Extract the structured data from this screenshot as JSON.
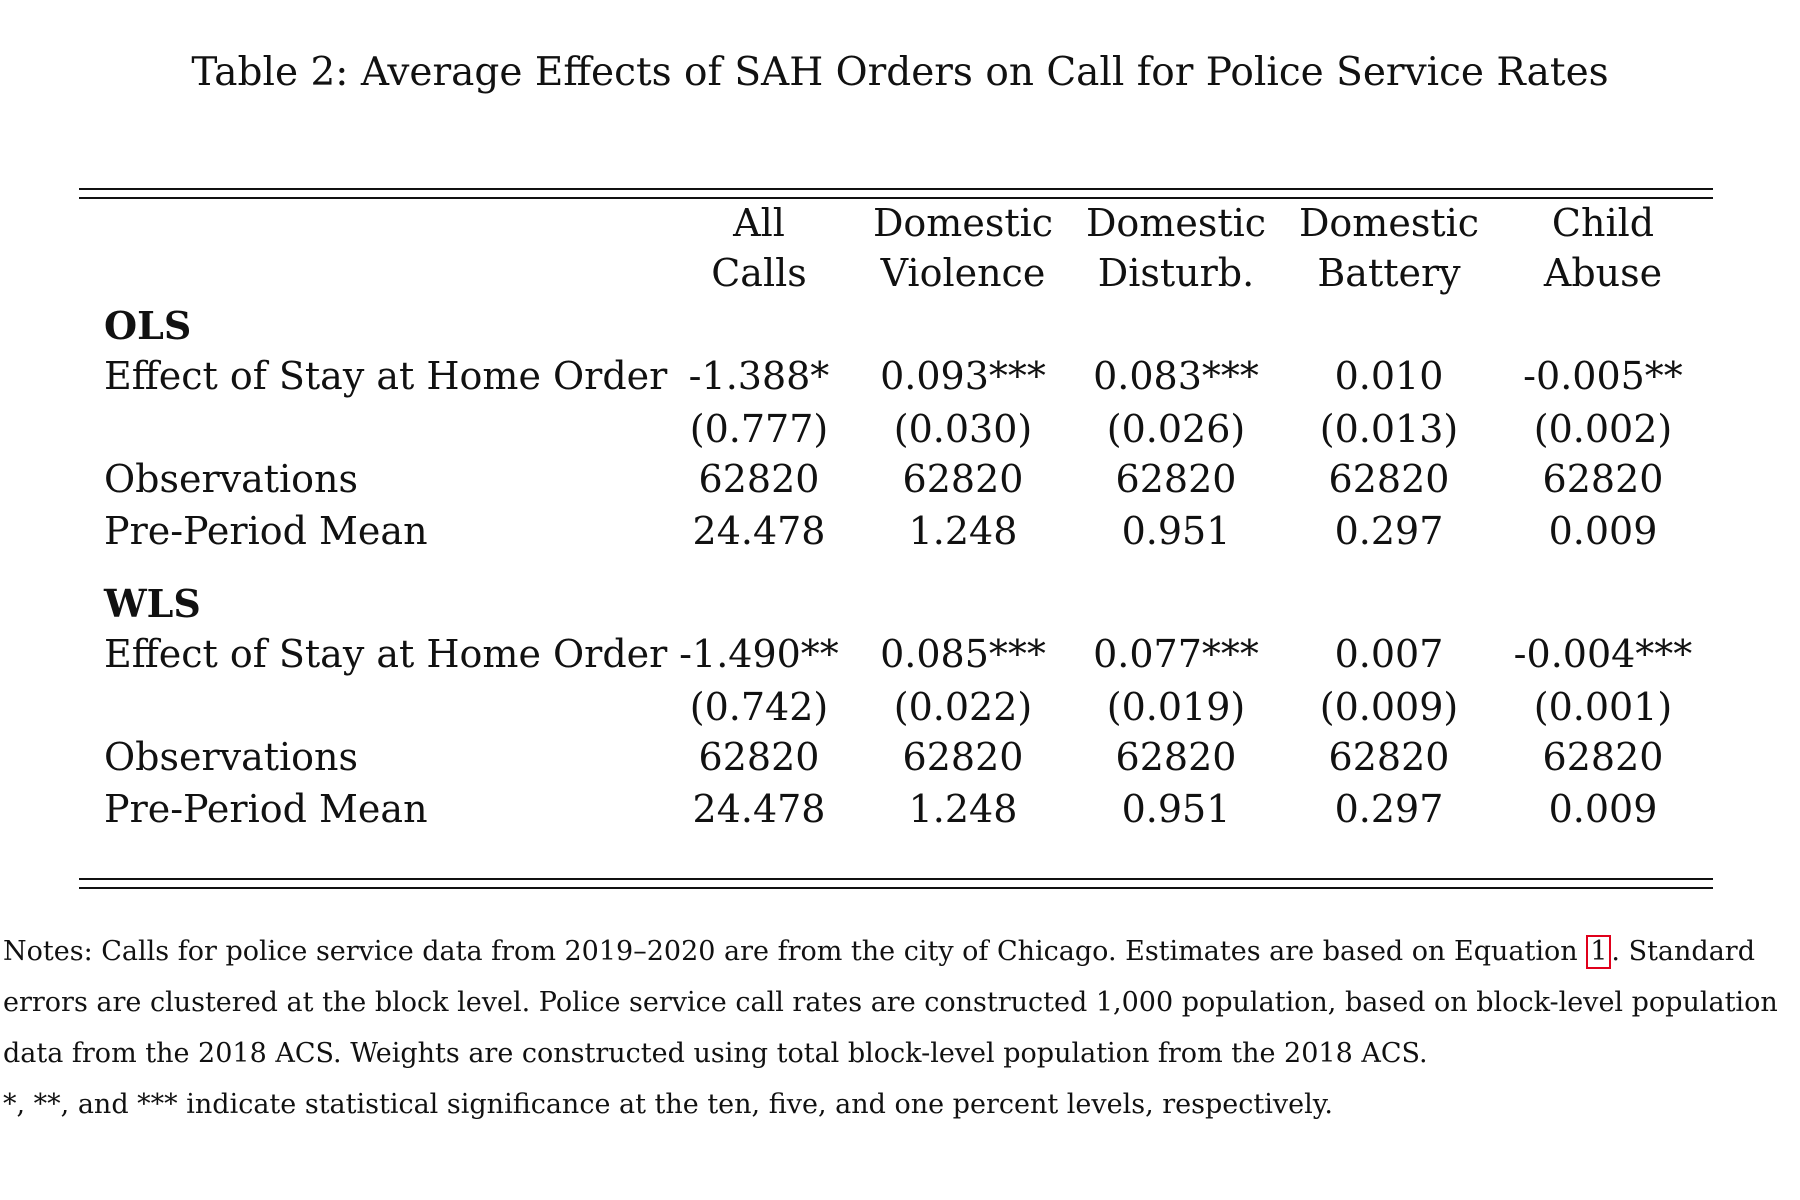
{
  "caption": "Table 2: Average Effects of SAH Orders on Call for Police Service Rates",
  "columns": [
    {
      "line1": "All",
      "line2": "Calls"
    },
    {
      "line1": "Domestic",
      "line2": "Violence"
    },
    {
      "line1": "Domestic",
      "line2": "Disturb."
    },
    {
      "line1": "Domestic",
      "line2": "Battery"
    },
    {
      "line1": "Child",
      "line2": "Abuse"
    }
  ],
  "panels": [
    {
      "title": "OLS",
      "rows": [
        {
          "label": "Effect of Stay at Home Order",
          "values": [
            "-1.388*",
            "0.093***",
            "0.083***",
            "0.010",
            "-0.005**"
          ]
        },
        {
          "label": "",
          "values": [
            "(0.777)",
            "(0.030)",
            "(0.026)",
            "(0.013)",
            "(0.002)"
          ]
        },
        {
          "label": "Observations",
          "values": [
            "62820",
            "62820",
            "62820",
            "62820",
            "62820"
          ]
        },
        {
          "label": "Pre-Period Mean",
          "values": [
            "24.478",
            "1.248",
            "0.951",
            "0.297",
            "0.009"
          ]
        }
      ]
    },
    {
      "title": "WLS",
      "rows": [
        {
          "label": "Effect of Stay at Home Order",
          "values": [
            "-1.490**",
            "0.085***",
            "0.077***",
            "0.007",
            "-0.004***"
          ]
        },
        {
          "label": "",
          "values": [
            "(0.742)",
            "(0.022)",
            "(0.019)",
            "(0.009)",
            "(0.001)"
          ]
        },
        {
          "label": "Observations",
          "values": [
            "62820",
            "62820",
            "62820",
            "62820",
            "62820"
          ]
        },
        {
          "label": "Pre-Period Mean",
          "values": [
            "24.478",
            "1.248",
            "0.951",
            "0.297",
            "0.009"
          ]
        }
      ]
    }
  ],
  "notes": {
    "line1_before_ref": "Notes: Calls for police service data from 2019–2020 are from the city of Chicago. Estimates are based on Equation ",
    "equation_ref": "1",
    "line1_after_ref": ". Standard",
    "line2": "errors are clustered at the block level. Police service call rates are constructed 1,000 population, based on block-level population",
    "line3": "data from the 2018 ACS. Weights are constructed using total block-level population from the 2018 ACS.",
    "line4": "*, **, and *** indicate statistical significance at the ten, five, and one percent levels, respectively."
  }
}
